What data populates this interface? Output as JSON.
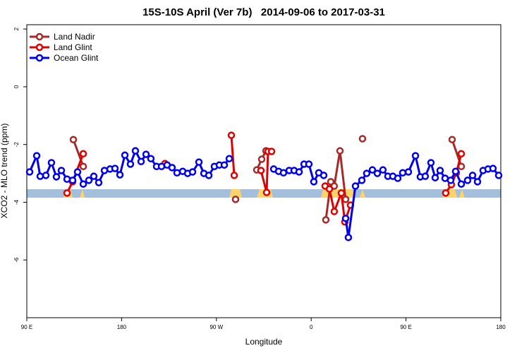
{
  "chart_data": {
    "type": "line",
    "title": "15S-10S April (Ver 7b)   2014-09-06 to 2017-03-31",
    "x_label": "Longitude",
    "y_label": "XCO2 - MLO trend (ppm)",
    "xlim": [
      90,
      540
    ],
    "ylim": [
      -8,
      2.15
    ],
    "xticks": [
      {
        "value": 90,
        "label": "90 E"
      },
      180,
      {
        "value": 270,
        "label": "90 W"
      },
      {
        "value": 360,
        "label": "0"
      },
      {
        "value": 450,
        "label": "90 E"
      },
      {
        "value": 540,
        "label": "180"
      }
    ],
    "yticks": [
      2,
      0,
      -2,
      -4,
      -6
    ],
    "legend": "top-left",
    "series": [
      {
        "name": "Land Nadir",
        "color": "#a52a2a",
        "x": [
          134.2,
          143.6,
          null,
          288.2,
          null,
          308.3,
          313.0,
          317.0,
          null,
          373.9,
          378.6,
          381.9,
          387.3,
          392.7,
          null,
          408.7,
          null,
          493.8,
          502.5
        ],
        "values": [
          -1.83,
          -2.76,
          null,
          -3.9,
          null,
          -2.88,
          -2.51,
          -2.22,
          null,
          -4.61,
          -3.29,
          -3.44,
          -2.22,
          -3.9,
          null,
          -1.8,
          null,
          -1.83,
          -2.76
        ]
      },
      {
        "name": "Land Glint",
        "color": "#e00000",
        "x": [
          128.2,
          133.5,
          143.6,
          null,
          221.2,
          null,
          284.2,
          286.9,
          null,
          312.3,
          317.7,
          319.0,
          322.4,
          null,
          373.2,
          377.3,
          381.9,
          388.6,
          392.0,
          397.3,
          null,
          487.7,
          493.1,
          497.8,
          502.5
        ],
        "values": [
          -3.68,
          -3.29,
          -2.32,
          null,
          -2.66,
          null,
          -1.68,
          -3.07,
          null,
          -2.9,
          -3.66,
          -2.24,
          -2.24,
          null,
          -3.44,
          -3.54,
          -4.32,
          -3.68,
          -4.68,
          -4.1,
          null,
          -3.68,
          -3.39,
          -2.98,
          -2.32
        ]
      },
      {
        "name": "Ocean Glint",
        "color": "#0000ee",
        "x": [
          92.7,
          99.4,
          102.7,
          108.1,
          113.4,
          118.1,
          122.8,
          128.2,
          133.5,
          138.2,
          143.6,
          148.9,
          153.6,
          158.3,
          163.7,
          169.0,
          173.7,
          178.4,
          183.1,
          188.4,
          193.1,
          198.5,
          203.2,
          207.8,
          213.2,
          217.9,
          223.2,
          227.9,
          232.6,
          238.0,
          242.7,
          247.4,
          253.4,
          258.1,
          262.8,
          268.1,
          272.8,
          277.5,
          282.2,
          null,
          324.4,
          329.1,
          333.7,
          339.1,
          343.8,
          348.5,
          353.2,
          357.8,
          362.5,
          367.2,
          371.9,
          null,
          392.7,
          395.3,
          402.0,
          408.1,
          412.7,
          418.1,
          422.8,
          428.1,
          432.8,
          437.5,
          442.2,
          446.9,
          452.3,
          459.0,
          463.6,
          468.3,
          473.7,
          477.7,
          482.4,
          487.1,
          492.4,
          497.1,
          502.5,
          508.5,
          513.2,
          517.9,
          523.2,
          527.9,
          532.6,
          538.0
        ],
        "values": [
          -2.95,
          -2.39,
          -3.1,
          -3.07,
          -2.63,
          -3.12,
          -2.9,
          -3.2,
          -3.24,
          -2.95,
          -3.37,
          -3.24,
          -3.1,
          -3.32,
          -2.9,
          -2.85,
          -2.83,
          -3.05,
          -2.37,
          -2.68,
          -2.22,
          -2.59,
          -2.34,
          -2.49,
          -2.76,
          -2.76,
          -2.71,
          -2.8,
          -2.98,
          -2.93,
          -3.0,
          -2.95,
          -2.61,
          -3.0,
          -3.07,
          -2.76,
          -2.71,
          -2.71,
          -2.49,
          null,
          -2.85,
          -2.93,
          -2.98,
          -2.9,
          -2.9,
          -2.95,
          -2.68,
          -2.68,
          -3.29,
          -2.98,
          -3.07,
          null,
          -4.56,
          -5.22,
          -3.44,
          -3.24,
          -3.0,
          -2.88,
          -3.0,
          -2.88,
          -3.1,
          -3.1,
          -3.17,
          -2.98,
          -2.95,
          -2.39,
          -3.12,
          -3.1,
          -2.63,
          -3.15,
          -2.9,
          -3.17,
          -3.24,
          -2.93,
          -3.37,
          -3.24,
          -3.07,
          -3.29,
          -2.9,
          -2.85,
          -2.83,
          -3.07
        ]
      }
    ]
  }
}
